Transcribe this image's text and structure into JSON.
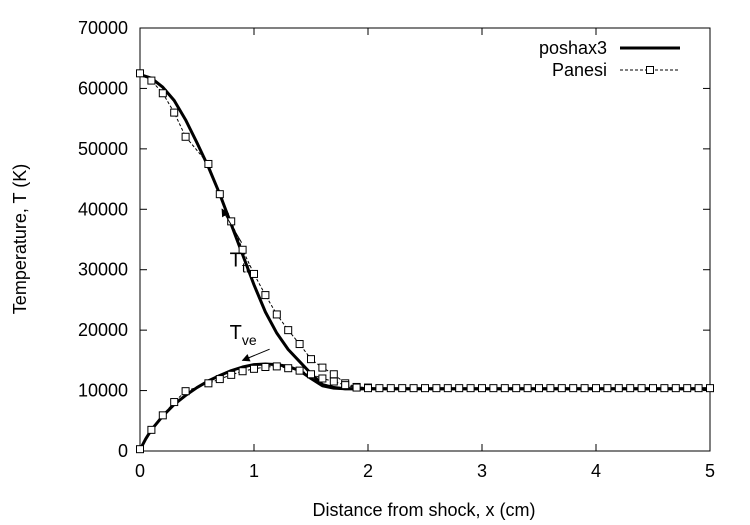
{
  "chart_data": {
    "type": "line",
    "xlabel": "Distance from shock, x (cm)",
    "ylabel": "Temperature, T (K)",
    "xlim": [
      0,
      5
    ],
    "ylim": [
      0,
      70000
    ],
    "xticks": [
      "0",
      "1",
      "2",
      "3",
      "4",
      "5"
    ],
    "yticks": [
      "0",
      "10000",
      "20000",
      "30000",
      "40000",
      "50000",
      "60000",
      "70000"
    ],
    "grid": false,
    "legend_position": "top-right",
    "series": [
      {
        "name": "poshax3",
        "style": "solid-thick",
        "curves": [
          {
            "x": [
              0,
              0.1,
              0.2,
              0.3,
              0.4,
              0.5,
              0.6,
              0.7,
              0.8,
              0.9,
              1.0,
              1.1,
              1.2,
              1.3,
              1.4,
              1.5,
              1.6,
              1.7,
              1.8,
              1.9,
              2.0,
              3.0,
              4.0,
              5.0
            ],
            "y": [
              62300,
              61700,
              60200,
              58000,
              54800,
              51000,
              47000,
              42500,
              37500,
              32500,
              27500,
              23000,
              19500,
              16800,
              14800,
              12800,
              11000,
              10500,
              10300,
              10300,
              10300,
              10300,
              10300,
              10300
            ]
          },
          {
            "x": [
              0,
              0.05,
              0.1,
              0.2,
              0.3,
              0.4,
              0.5,
              0.6,
              0.7,
              0.8,
              0.9,
              1.0,
              1.1,
              1.2,
              1.3,
              1.4,
              1.5,
              1.6,
              1.7,
              1.8,
              1.9,
              2.0,
              3.0,
              4.0,
              5.0
            ],
            "y": [
              200,
              2000,
              3500,
              5800,
              7700,
              9200,
              10500,
              11600,
              12500,
              13300,
              13900,
              14300,
              14400,
              14300,
              14000,
              13300,
              12000,
              10800,
              10400,
              10300,
              10300,
              10300,
              10300,
              10300,
              10300
            ]
          }
        ]
      },
      {
        "name": "Panesi",
        "style": "dashed-square-markers",
        "curves": [
          {
            "x": [
              0,
              0.1,
              0.2,
              0.3,
              0.4,
              0.6,
              0.7,
              0.8,
              0.9,
              1.0,
              1.1,
              1.2,
              1.3,
              1.4,
              1.5,
              1.6,
              1.7,
              1.8,
              1.9,
              2.0,
              2.1,
              2.2,
              2.3,
              2.4,
              2.5,
              2.6,
              2.7,
              2.8,
              2.9,
              3.0,
              3.1,
              3.2,
              3.3,
              3.4,
              3.5,
              3.6,
              3.7,
              3.8,
              3.9,
              4.0,
              4.1,
              4.2,
              4.3,
              4.4,
              4.5,
              4.6,
              4.7,
              4.8,
              4.9,
              5.0
            ],
            "y": [
              62500,
              61300,
              59200,
              56000,
              52000,
              47500,
              42500,
              38000,
              33300,
              29300,
              25800,
              22600,
              20000,
              17700,
              15200,
              13800,
              12700,
              11200,
              10600,
              10500,
              10400,
              10400,
              10400,
              10400,
              10400,
              10400,
              10400,
              10400,
              10400,
              10400,
              10400,
              10400,
              10400,
              10400,
              10400,
              10400,
              10400,
              10400,
              10400,
              10400,
              10400,
              10400,
              10400,
              10400,
              10400,
              10400,
              10400,
              10400,
              10400,
              10400
            ]
          },
          {
            "x": [
              0,
              0.1,
              0.2,
              0.3,
              0.4,
              0.6,
              0.7,
              0.8,
              0.9,
              1.0,
              1.1,
              1.2,
              1.3,
              1.4,
              1.5,
              1.6,
              1.7,
              1.8,
              1.9,
              2.0
            ],
            "y": [
              300,
              3500,
              5900,
              8100,
              9900,
              11200,
              11900,
              12600,
              13200,
              13600,
              13900,
              14000,
              13700,
              13300,
              12700,
              12000,
              11500,
              10900,
              10500,
              10400
            ]
          }
        ]
      }
    ],
    "annotations": [
      {
        "text": "T",
        "subscript": "tr",
        "x": 0.4,
        "y": 31000,
        "arrow_to": [
          0.72,
          40000
        ]
      },
      {
        "text": "T",
        "subscript": "ve",
        "x": 0.4,
        "y": 19000,
        "arrow_to": [
          0.9,
          15000
        ]
      }
    ]
  }
}
